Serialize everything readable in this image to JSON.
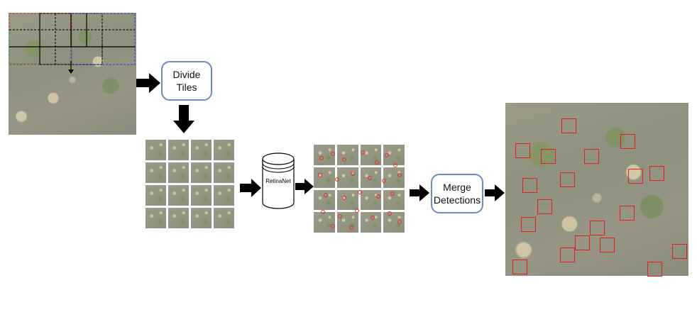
{
  "steps": {
    "divide": {
      "line1": "Divide",
      "line2": "Tiles"
    },
    "model": {
      "label": "RetinaNet"
    },
    "merge": {
      "line1": "Merge",
      "line2": "Detections"
    }
  },
  "colors": {
    "box_border": "#6a8cc0",
    "detection": "#e02020",
    "arrow": "#000000"
  }
}
